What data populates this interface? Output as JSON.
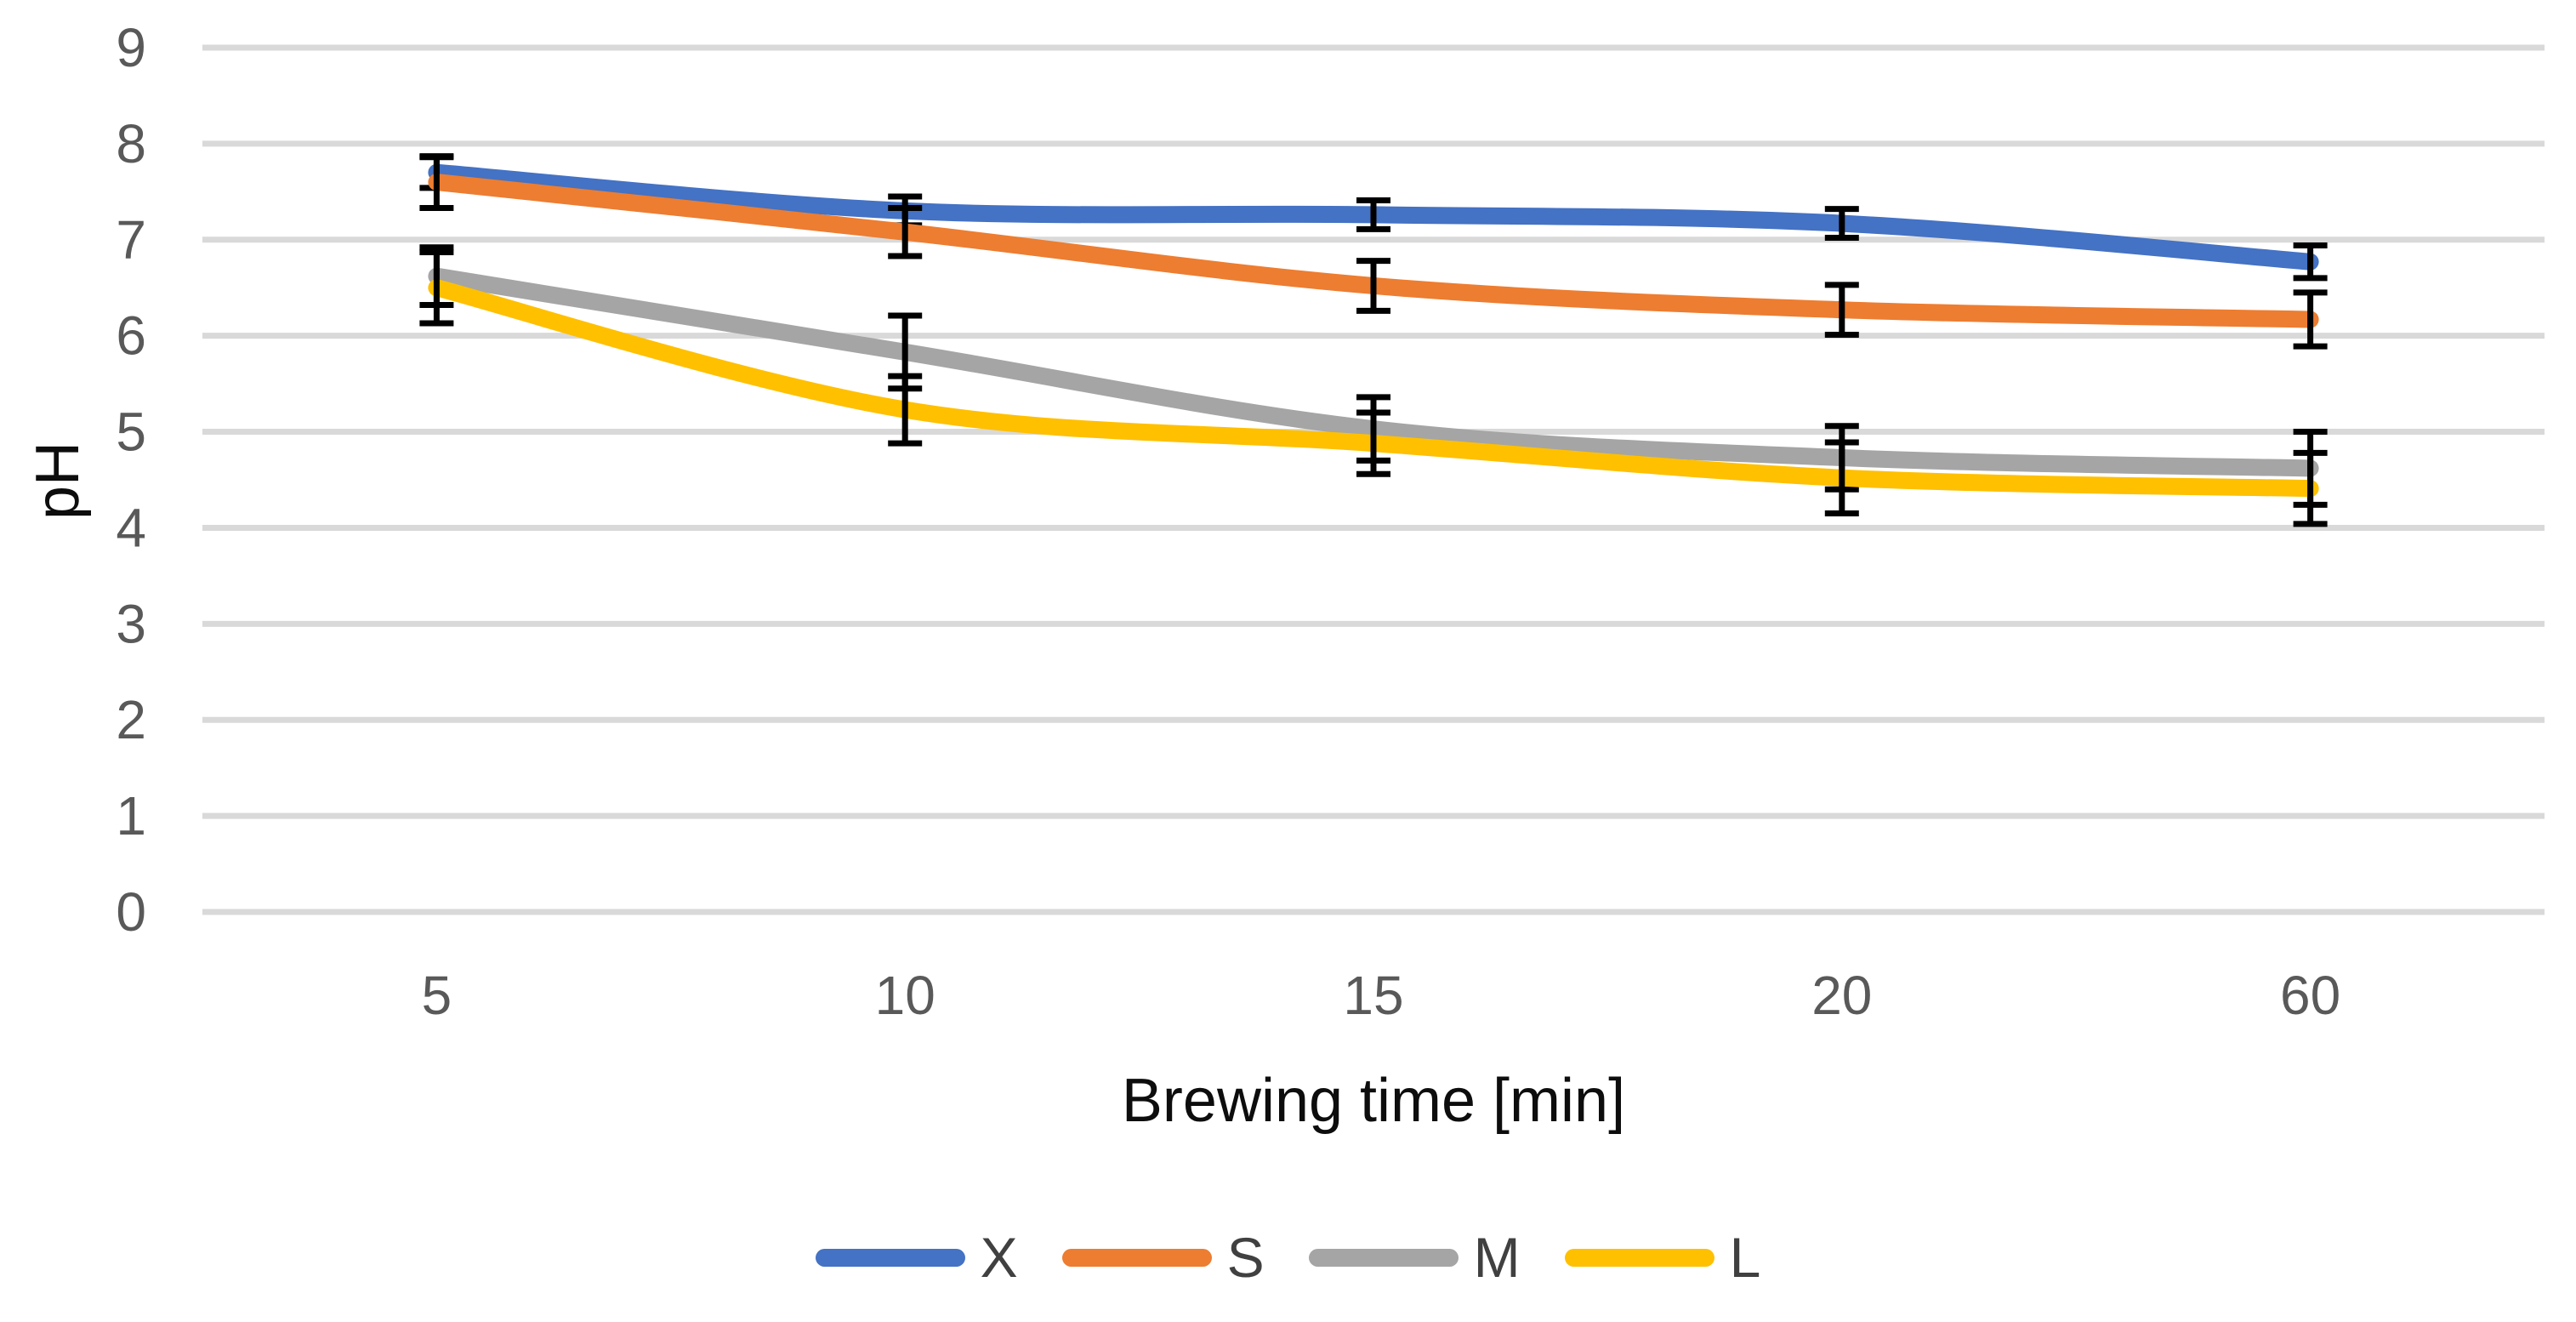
{
  "chart_data": {
    "type": "line",
    "title": "",
    "xlabel": "Brewing time [min]",
    "ylabel": "pH",
    "categories": [
      "5",
      "10",
      "15",
      "20",
      "60"
    ],
    "y_ticks": [
      9,
      8,
      7,
      6,
      5,
      4,
      3,
      2,
      1,
      0
    ],
    "ylim": [
      0,
      9
    ],
    "grid": true,
    "line_style": "smooth",
    "error_bars": true,
    "legend_position": "bottom-center",
    "series": [
      {
        "name": "X",
        "color": "#4472C4",
        "values": [
          7.7,
          7.3,
          7.26,
          7.17,
          6.77
        ],
        "errors": [
          0.16,
          0.15,
          0.15,
          0.15,
          0.17
        ]
      },
      {
        "name": "S",
        "color": "#ED7D31",
        "values": [
          7.6,
          7.08,
          6.52,
          6.27,
          6.17
        ],
        "errors": [
          0.27,
          0.25,
          0.26,
          0.26,
          0.28
        ]
      },
      {
        "name": "M",
        "color": "#A5A5A5",
        "values": [
          6.62,
          5.83,
          5.03,
          4.73,
          4.62
        ],
        "errors": [
          0.3,
          0.38,
          0.33,
          0.33,
          0.38
        ]
      },
      {
        "name": "L",
        "color": "#FFC000",
        "values": [
          6.5,
          5.23,
          4.88,
          4.52,
          4.41
        ],
        "errors": [
          0.37,
          0.35,
          0.32,
          0.37,
          0.37
        ]
      }
    ],
    "colors": {
      "gridline": "#D9D9D9",
      "tick_label": "#595959",
      "axis_title": "#0d0d0d",
      "error_bar": "#000000",
      "legend_label": "#404040",
      "background": "#FFFFFF"
    }
  }
}
